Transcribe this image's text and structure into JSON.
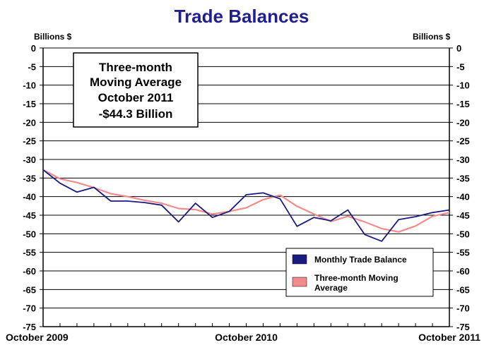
{
  "chart_data": {
    "type": "line",
    "title": "Trade Balances",
    "left_axis_unit": "Billions $",
    "right_axis_unit": "Billions $",
    "ylim": [
      -75,
      0
    ],
    "y_ticks": [
      "0",
      "-5",
      "-10",
      "-15",
      "-20",
      "-25",
      "-30",
      "-35",
      "-40",
      "-45",
      "-50",
      "-55",
      "-60",
      "-65",
      "-70",
      "-75"
    ],
    "x_tick_labels": [
      "October 2009",
      "October 2010",
      "October 2011"
    ],
    "x_tick_label_indices": [
      0,
      12,
      24
    ],
    "grid": true,
    "legend_position": "bottom-right",
    "annotation": [
      "Three-month",
      "Moving Average",
      "October 2011",
      "-$44.3 Billion"
    ],
    "series": [
      {
        "name": "Monthly Trade Balance",
        "color": "#1a1a80",
        "values": [
          -32.8,
          -36.4,
          -38.8,
          -37.5,
          -41.2,
          -41.2,
          -41.6,
          -42.3,
          -46.8,
          -41.8,
          -45.6,
          -44.0,
          -39.5,
          -39.0,
          -40.6,
          -48.0,
          -45.6,
          -46.5,
          -43.6,
          -50.2,
          -52.0,
          -46.2,
          -45.4,
          -44.3,
          -43.6
        ]
      },
      {
        "name": "Three-month Moving Average",
        "color": "#f28b8b",
        "values": [
          -32.8,
          -35.2,
          -36.2,
          -37.6,
          -39.2,
          -40.0,
          -41.0,
          -41.8,
          -43.2,
          -43.5,
          -44.7,
          -44.0,
          -43.0,
          -40.8,
          -39.6,
          -42.6,
          -44.7,
          -46.7,
          -45.3,
          -46.8,
          -48.6,
          -49.5,
          -47.9,
          -45.3,
          -44.3
        ]
      }
    ]
  }
}
